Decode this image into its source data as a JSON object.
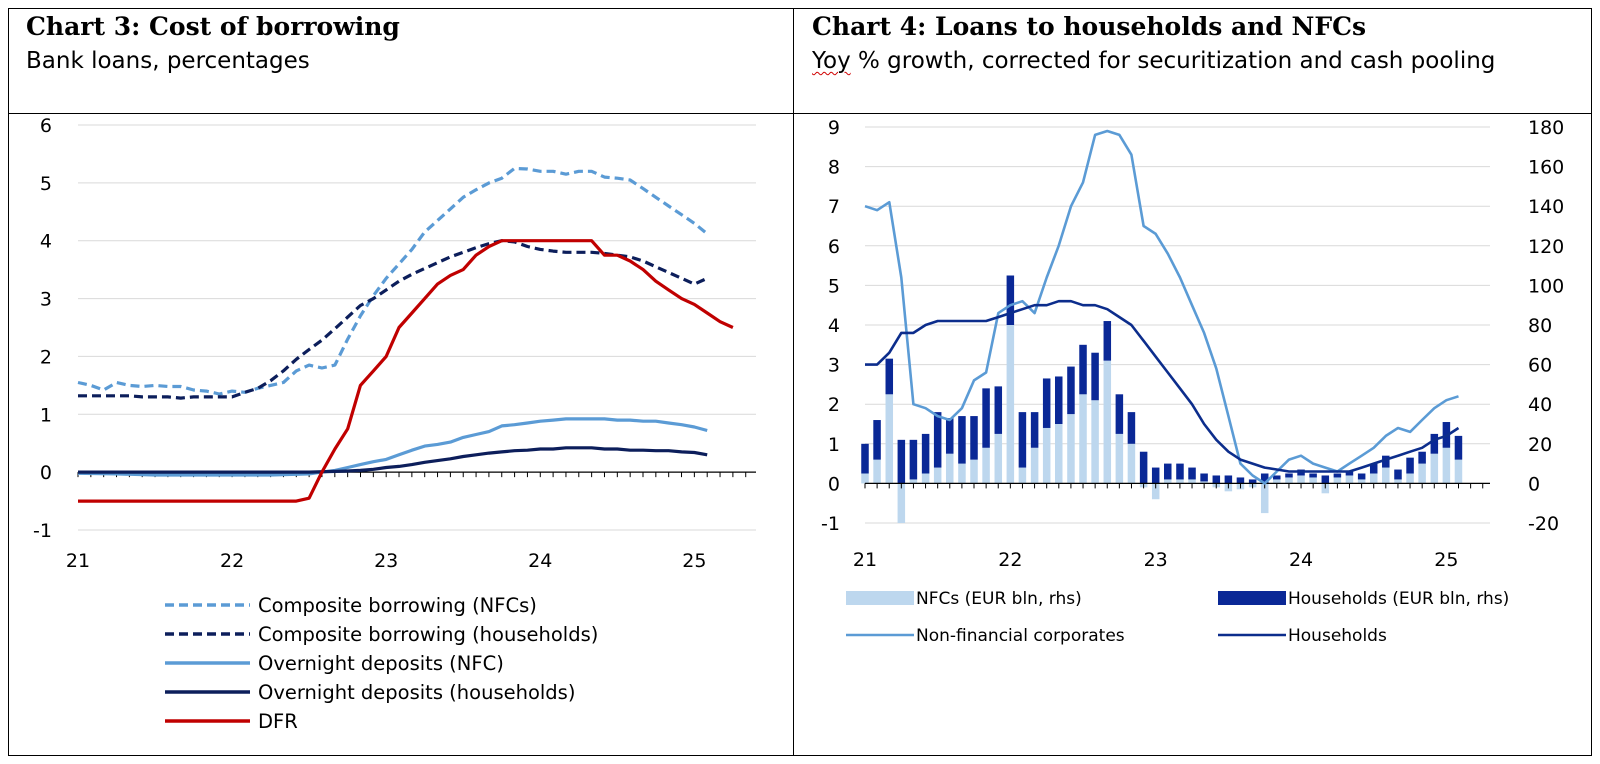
{
  "charts": [
    {
      "title": "Chart 3: Cost of borrowing",
      "subtitle": "Bank loans, percentages"
    },
    {
      "title": "Chart 4: Loans to households and NFCs",
      "subtitle_word1": "Yoy",
      "subtitle_rest": " % growth, corrected for securitization and cash pooling"
    }
  ],
  "chart_data": [
    {
      "type": "line",
      "title": "Chart 3: Cost of borrowing",
      "subtitle": "Bank loans, percentages",
      "xlim": [
        21,
        25.4
      ],
      "ylim": [
        -1,
        6
      ],
      "x_ticks": [
        "21",
        "22",
        "23",
        "24",
        "25"
      ],
      "y_ticks": [
        "6",
        "5",
        "4",
        "3",
        "2",
        "1",
        "0",
        "-1"
      ],
      "grid": true,
      "legend_position": "bottom",
      "series": [
        {
          "name": "Composite borrowing (NFCs)",
          "color": "#5b9bd5",
          "dash": "dashed",
          "x": [
            21,
            21.083,
            21.167,
            21.25,
            21.333,
            21.417,
            21.5,
            21.583,
            21.667,
            21.75,
            21.833,
            21.917,
            22,
            22.083,
            22.167,
            22.25,
            22.333,
            22.417,
            22.5,
            22.583,
            22.667,
            22.75,
            22.833,
            22.917,
            23,
            23.083,
            23.167,
            23.25,
            23.333,
            23.417,
            23.5,
            23.583,
            23.667,
            23.75,
            23.833,
            23.917,
            24,
            24.083,
            24.167,
            24.25,
            24.333,
            24.417,
            24.5,
            24.583,
            24.667,
            24.75,
            24.833,
            24.917,
            25,
            25.083
          ],
          "y": [
            1.55,
            1.5,
            1.42,
            1.55,
            1.5,
            1.48,
            1.5,
            1.48,
            1.48,
            1.42,
            1.4,
            1.35,
            1.4,
            1.38,
            1.45,
            1.5,
            1.55,
            1.75,
            1.85,
            1.8,
            1.85,
            2.3,
            2.7,
            3.05,
            3.35,
            3.6,
            3.85,
            4.15,
            4.35,
            4.55,
            4.75,
            4.88,
            5.0,
            5.08,
            5.25,
            5.24,
            5.2,
            5.2,
            5.15,
            5.2,
            5.2,
            5.1,
            5.08,
            5.05,
            4.9,
            4.75,
            4.6,
            4.45,
            4.3,
            4.12
          ]
        },
        {
          "name": "Composite borrowing (households)",
          "color": "#0c1e5b",
          "dash": "dashed",
          "x": [
            21,
            21.083,
            21.167,
            21.25,
            21.333,
            21.417,
            21.5,
            21.583,
            21.667,
            21.75,
            21.833,
            21.917,
            22,
            22.083,
            22.167,
            22.25,
            22.333,
            22.417,
            22.5,
            22.583,
            22.667,
            22.75,
            22.833,
            22.917,
            23,
            23.083,
            23.167,
            23.25,
            23.333,
            23.417,
            23.5,
            23.583,
            23.667,
            23.75,
            23.833,
            23.917,
            24,
            24.083,
            24.167,
            24.25,
            24.333,
            24.417,
            24.5,
            24.583,
            24.667,
            24.75,
            24.833,
            24.917,
            25,
            25.083
          ],
          "y": [
            1.32,
            1.32,
            1.32,
            1.32,
            1.32,
            1.3,
            1.3,
            1.3,
            1.28,
            1.3,
            1.3,
            1.3,
            1.3,
            1.38,
            1.45,
            1.58,
            1.75,
            1.95,
            2.12,
            2.28,
            2.48,
            2.68,
            2.88,
            3.0,
            3.15,
            3.3,
            3.42,
            3.52,
            3.62,
            3.72,
            3.8,
            3.88,
            3.95,
            4.0,
            3.98,
            3.9,
            3.85,
            3.82,
            3.8,
            3.8,
            3.8,
            3.78,
            3.75,
            3.72,
            3.65,
            3.55,
            3.45,
            3.35,
            3.25,
            3.35
          ]
        },
        {
          "name": "Overnight deposits (NFC)",
          "color": "#5b9bd5",
          "dash": "solid",
          "x": [
            21,
            21.25,
            21.5,
            21.75,
            22,
            22.25,
            22.5,
            22.583,
            22.667,
            22.75,
            22.833,
            22.917,
            23,
            23.083,
            23.167,
            23.25,
            23.333,
            23.417,
            23.5,
            23.583,
            23.667,
            23.75,
            23.833,
            23.917,
            24,
            24.083,
            24.167,
            24.25,
            24.333,
            24.417,
            24.5,
            24.583,
            24.667,
            24.75,
            24.833,
            24.917,
            25,
            25.083
          ],
          "y": [
            -0.02,
            -0.03,
            -0.05,
            -0.05,
            -0.05,
            -0.05,
            -0.03,
            0.0,
            0.03,
            0.08,
            0.13,
            0.18,
            0.22,
            0.3,
            0.38,
            0.45,
            0.48,
            0.52,
            0.6,
            0.65,
            0.7,
            0.8,
            0.82,
            0.85,
            0.88,
            0.9,
            0.92,
            0.92,
            0.92,
            0.92,
            0.9,
            0.9,
            0.88,
            0.88,
            0.85,
            0.82,
            0.78,
            0.72
          ]
        },
        {
          "name": "Overnight deposits (households)",
          "color": "#0c1e5b",
          "dash": "solid",
          "x": [
            21,
            21.5,
            22,
            22.5,
            22.75,
            22.833,
            22.917,
            23,
            23.083,
            23.167,
            23.25,
            23.333,
            23.417,
            23.5,
            23.583,
            23.667,
            23.75,
            23.833,
            23.917,
            24,
            24.083,
            24.167,
            24.25,
            24.333,
            24.417,
            24.5,
            24.583,
            24.667,
            24.75,
            24.833,
            24.917,
            25,
            25.083
          ],
          "y": [
            0.0,
            0.0,
            0.0,
            0.0,
            0.02,
            0.03,
            0.05,
            0.08,
            0.1,
            0.13,
            0.17,
            0.2,
            0.23,
            0.27,
            0.3,
            0.33,
            0.35,
            0.37,
            0.38,
            0.4,
            0.4,
            0.42,
            0.42,
            0.42,
            0.4,
            0.4,
            0.38,
            0.38,
            0.37,
            0.37,
            0.35,
            0.34,
            0.3
          ]
        },
        {
          "name": "DFR",
          "color": "#c00000",
          "dash": "solid",
          "x": [
            21,
            21.5,
            22,
            22.417,
            22.5,
            22.583,
            22.667,
            22.75,
            22.833,
            22.917,
            23,
            23.083,
            23.167,
            23.25,
            23.333,
            23.417,
            23.5,
            23.583,
            23.667,
            23.75,
            23.833,
            24,
            24.167,
            24.333,
            24.417,
            24.5,
            24.583,
            24.667,
            24.75,
            24.833,
            24.917,
            25,
            25.083,
            25.167,
            25.25
          ],
          "y": [
            -0.5,
            -0.5,
            -0.5,
            -0.5,
            -0.45,
            0.0,
            0.4,
            0.75,
            1.5,
            1.75,
            2.0,
            2.5,
            2.75,
            3.0,
            3.25,
            3.4,
            3.5,
            3.75,
            3.9,
            4.0,
            4.0,
            4.0,
            4.0,
            4.0,
            3.75,
            3.75,
            3.65,
            3.5,
            3.3,
            3.15,
            3.0,
            2.9,
            2.75,
            2.6,
            2.5
          ]
        }
      ]
    },
    {
      "type": "bar+line",
      "title": "Chart 4: Loans to households and NFCs",
      "subtitle": "Yoy % growth, corrected for securitization and cash pooling",
      "xlim": [
        21,
        25.3
      ],
      "ylim_left": [
        -1,
        9
      ],
      "ylim_right": [
        -20,
        180
      ],
      "x_ticks": [
        "21",
        "22",
        "23",
        "24",
        "25"
      ],
      "y_ticks_left": [
        "9",
        "8",
        "7",
        "6",
        "5",
        "4",
        "3",
        "2",
        "1",
        "0",
        "-1"
      ],
      "y_ticks_right": [
        "180",
        "160",
        "140",
        "120",
        "100",
        "80",
        "60",
        "40",
        "20",
        "0",
        "-20"
      ],
      "grid": true,
      "legend_position": "bottom",
      "bar_x": [
        21,
        21.083,
        21.167,
        21.25,
        21.333,
        21.417,
        21.5,
        21.583,
        21.667,
        21.75,
        21.833,
        21.917,
        22,
        22.083,
        22.167,
        22.25,
        22.333,
        22.417,
        22.5,
        22.583,
        22.667,
        22.75,
        22.833,
        22.917,
        23,
        23.083,
        23.167,
        23.25,
        23.333,
        23.417,
        23.5,
        23.583,
        23.667,
        23.75,
        23.833,
        23.917,
        24,
        24.083,
        24.167,
        24.25,
        24.333,
        24.417,
        24.5,
        24.583,
        24.667,
        24.75,
        24.833,
        24.917,
        25,
        25.083
      ],
      "bar_series": [
        {
          "name": "NFCs (EUR bln, rhs)",
          "color": "#bdd7ee",
          "values": [
            5,
            12,
            45,
            -20,
            2,
            5,
            8,
            15,
            10,
            12,
            18,
            25,
            80,
            8,
            18,
            28,
            30,
            35,
            45,
            42,
            62,
            25,
            20,
            -2,
            -8,
            2,
            2,
            2,
            1,
            -2,
            -4,
            -3,
            -2,
            -15,
            2,
            3,
            4,
            3,
            -5,
            3,
            4,
            2,
            5,
            8,
            2,
            5,
            10,
            15,
            18,
            12
          ]
        },
        {
          "name": "Households (EUR bln, rhs)",
          "color": "#0a2896",
          "values": [
            15,
            20,
            18,
            22,
            20,
            20,
            28,
            18,
            24,
            22,
            30,
            24,
            25,
            28,
            18,
            25,
            24,
            24,
            25,
            24,
            20,
            20,
            16,
            16,
            8,
            8,
            8,
            6,
            4,
            4,
            4,
            3,
            2,
            5,
            2,
            2,
            3,
            2,
            4,
            2,
            2,
            3,
            5,
            6,
            5,
            8,
            6,
            10,
            13,
            12
          ]
        }
      ],
      "line_series": [
        {
          "name": "Non-financial corporates",
          "color": "#5b9bd5",
          "axis": "left",
          "x": [
            21,
            21.083,
            21.167,
            21.25,
            21.333,
            21.417,
            21.5,
            21.583,
            21.667,
            21.75,
            21.833,
            21.917,
            22,
            22.083,
            22.167,
            22.25,
            22.333,
            22.417,
            22.5,
            22.583,
            22.667,
            22.75,
            22.833,
            22.917,
            23,
            23.083,
            23.167,
            23.25,
            23.333,
            23.417,
            23.5,
            23.583,
            23.667,
            23.75,
            23.833,
            23.917,
            24,
            24.083,
            24.167,
            24.25,
            24.333,
            24.417,
            24.5,
            24.583,
            24.667,
            24.75,
            24.833,
            24.917,
            25,
            25.083
          ],
          "y": [
            7.0,
            6.9,
            7.1,
            5.2,
            2.0,
            1.9,
            1.7,
            1.6,
            1.9,
            2.6,
            2.8,
            4.3,
            4.5,
            4.6,
            4.3,
            5.2,
            6.0,
            7.0,
            7.6,
            8.8,
            8.9,
            8.8,
            8.3,
            6.5,
            6.3,
            5.8,
            5.2,
            4.5,
            3.8,
            2.9,
            1.7,
            0.5,
            0.2,
            0.0,
            0.3,
            0.6,
            0.7,
            0.5,
            0.4,
            0.3,
            0.5,
            0.7,
            0.9,
            1.2,
            1.4,
            1.3,
            1.6,
            1.9,
            2.1,
            2.2
          ]
        },
        {
          "name": "Households",
          "color": "#0c2d8c",
          "axis": "left",
          "x": [
            21,
            21.083,
            21.167,
            21.25,
            21.333,
            21.417,
            21.5,
            21.583,
            21.667,
            21.75,
            21.833,
            21.917,
            22,
            22.083,
            22.167,
            22.25,
            22.333,
            22.417,
            22.5,
            22.583,
            22.667,
            22.75,
            22.833,
            22.917,
            23,
            23.083,
            23.167,
            23.25,
            23.333,
            23.417,
            23.5,
            23.583,
            23.667,
            23.75,
            23.833,
            23.917,
            24,
            24.083,
            24.167,
            24.25,
            24.333,
            24.417,
            24.5,
            24.583,
            24.667,
            24.75,
            24.833,
            24.917,
            25,
            25.083
          ],
          "y": [
            3.0,
            3.0,
            3.3,
            3.8,
            3.8,
            4.0,
            4.1,
            4.1,
            4.1,
            4.1,
            4.1,
            4.2,
            4.3,
            4.4,
            4.5,
            4.5,
            4.6,
            4.6,
            4.5,
            4.5,
            4.4,
            4.2,
            4.0,
            3.6,
            3.2,
            2.8,
            2.4,
            2.0,
            1.5,
            1.1,
            0.8,
            0.6,
            0.5,
            0.4,
            0.35,
            0.3,
            0.3,
            0.3,
            0.3,
            0.3,
            0.3,
            0.4,
            0.5,
            0.6,
            0.7,
            0.8,
            0.9,
            1.1,
            1.2,
            1.4
          ]
        }
      ]
    }
  ]
}
